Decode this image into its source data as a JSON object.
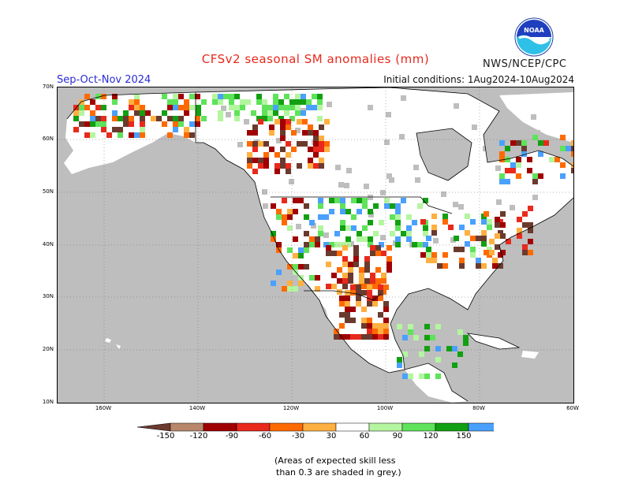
{
  "title": "CFSv2 seasonal SM anomalies (mm)",
  "agency": "NWS/NCEP/CPC",
  "season": "Sep-Oct-Nov 2024",
  "initial_conditions": "Initial conditions: 1Aug2024-10Aug2024",
  "logo_text": "NOAA",
  "note_lines": [
    "(Areas of expected skill less",
    "than 0.3 are shaded in grey.)"
  ],
  "lat_labels": [
    "70N",
    "60N",
    "50N",
    "40N",
    "30N",
    "20N",
    "10N"
  ],
  "lon_labels": [
    "160W",
    "140W",
    "120W",
    "100W",
    "80W",
    "60W"
  ],
  "colorbar": {
    "labels": [
      "-150",
      "-120",
      "-90",
      "-60",
      "-30",
      "30",
      "60",
      "90",
      "120",
      "150"
    ],
    "colors": [
      "#6b3a2e",
      "#b8876b",
      "#a00000",
      "#e8291c",
      "#ff6a00",
      "#ffb040",
      "#ffffff",
      "#b4f5a0",
      "#5ee35a",
      "#12a012",
      "#4aa0ff",
      "#1f4fe0"
    ]
  },
  "colors": {
    "skill_grey": "#bebebe",
    "land_white": "#ffffff",
    "title_red": "#e8291c",
    "season_blue": "#2b2bd4"
  }
}
